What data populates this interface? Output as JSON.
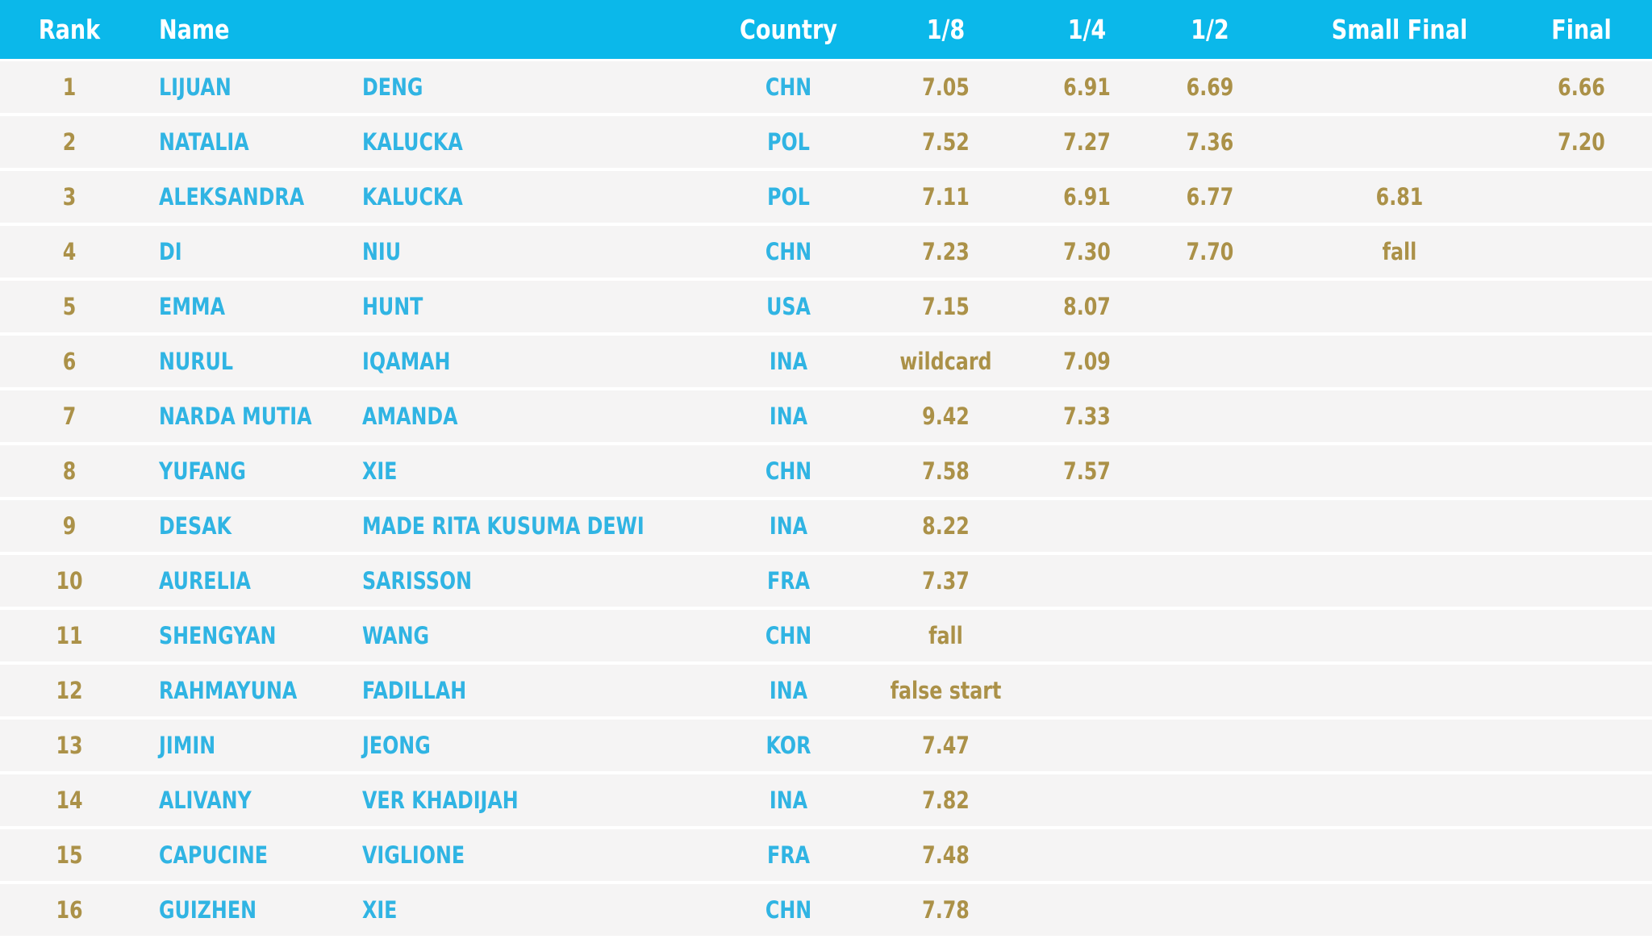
{
  "colors": {
    "header_bg": "#0bb8ea",
    "header_text": "#ffffff",
    "name_text": "#30b4e3",
    "time_text": "#ab9148",
    "row_bg": "#f5f4f4",
    "separator": "#ffffff"
  },
  "table": {
    "columns": [
      {
        "key": "rank",
        "label": "Rank"
      },
      {
        "key": "first",
        "label": "Name"
      },
      {
        "key": "last",
        "label": ""
      },
      {
        "key": "country",
        "label": "Country"
      },
      {
        "key": "r18",
        "label": "1/8"
      },
      {
        "key": "r14",
        "label": "1/4"
      },
      {
        "key": "r12",
        "label": "1/2"
      },
      {
        "key": "small_final",
        "label": "Small Final"
      },
      {
        "key": "final",
        "label": "Final"
      }
    ],
    "rows": [
      {
        "rank": "1",
        "first": "LIJUAN",
        "last": "DENG",
        "country": "CHN",
        "r18": "7.05",
        "r14": "6.91",
        "r12": "6.69",
        "small_final": "",
        "final": "6.66"
      },
      {
        "rank": "2",
        "first": "NATALIA",
        "last": "KALUCKA",
        "country": "POL",
        "r18": "7.52",
        "r14": "7.27",
        "r12": "7.36",
        "small_final": "",
        "final": "7.20"
      },
      {
        "rank": "3",
        "first": "ALEKSANDRA",
        "last": "KALUCKA",
        "country": "POL",
        "r18": "7.11",
        "r14": "6.91",
        "r12": "6.77",
        "small_final": "6.81",
        "final": ""
      },
      {
        "rank": "4",
        "first": "DI",
        "last": "NIU",
        "country": "CHN",
        "r18": "7.23",
        "r14": "7.30",
        "r12": "7.70",
        "small_final": "fall",
        "final": ""
      },
      {
        "rank": "5",
        "first": "EMMA",
        "last": "HUNT",
        "country": "USA",
        "r18": "7.15",
        "r14": "8.07",
        "r12": "",
        "small_final": "",
        "final": ""
      },
      {
        "rank": "6",
        "first": "NURUL",
        "last": "IQAMAH",
        "country": "INA",
        "r18": "wildcard",
        "r14": "7.09",
        "r12": "",
        "small_final": "",
        "final": ""
      },
      {
        "rank": "7",
        "first": "NARDA MUTIA",
        "last": "AMANDA",
        "country": "INA",
        "r18": "9.42",
        "r14": "7.33",
        "r12": "",
        "small_final": "",
        "final": ""
      },
      {
        "rank": "8",
        "first": "YUFANG",
        "last": "XIE",
        "country": "CHN",
        "r18": "7.58",
        "r14": "7.57",
        "r12": "",
        "small_final": "",
        "final": ""
      },
      {
        "rank": "9",
        "first": "DESAK",
        "last": "MADE RITA KUSUMA DEWI",
        "country": "INA",
        "r18": "8.22",
        "r14": "",
        "r12": "",
        "small_final": "",
        "final": ""
      },
      {
        "rank": "10",
        "first": "AURELIA",
        "last": "SARISSON",
        "country": "FRA",
        "r18": "7.37",
        "r14": "",
        "r12": "",
        "small_final": "",
        "final": ""
      },
      {
        "rank": "11",
        "first": "SHENGYAN",
        "last": "WANG",
        "country": "CHN",
        "r18": "fall",
        "r14": "",
        "r12": "",
        "small_final": "",
        "final": ""
      },
      {
        "rank": "12",
        "first": "RAHMAYUNA",
        "last": "FADILLAH",
        "country": "INA",
        "r18": "false start",
        "r14": "",
        "r12": "",
        "small_final": "",
        "final": ""
      },
      {
        "rank": "13",
        "first": "JIMIN",
        "last": "JEONG",
        "country": "KOR",
        "r18": "7.47",
        "r14": "",
        "r12": "",
        "small_final": "",
        "final": ""
      },
      {
        "rank": "14",
        "first": "ALIVANY",
        "last": "VER KHADIJAH",
        "country": "INA",
        "r18": "7.82",
        "r14": "",
        "r12": "",
        "small_final": "",
        "final": ""
      },
      {
        "rank": "15",
        "first": "CAPUCINE",
        "last": "VIGLIONE",
        "country": "FRA",
        "r18": "7.48",
        "r14": "",
        "r12": "",
        "small_final": "",
        "final": ""
      },
      {
        "rank": "16",
        "first": "GUIZHEN",
        "last": "XIE",
        "country": "CHN",
        "r18": "7.78",
        "r14": "",
        "r12": "",
        "small_final": "",
        "final": ""
      }
    ]
  }
}
